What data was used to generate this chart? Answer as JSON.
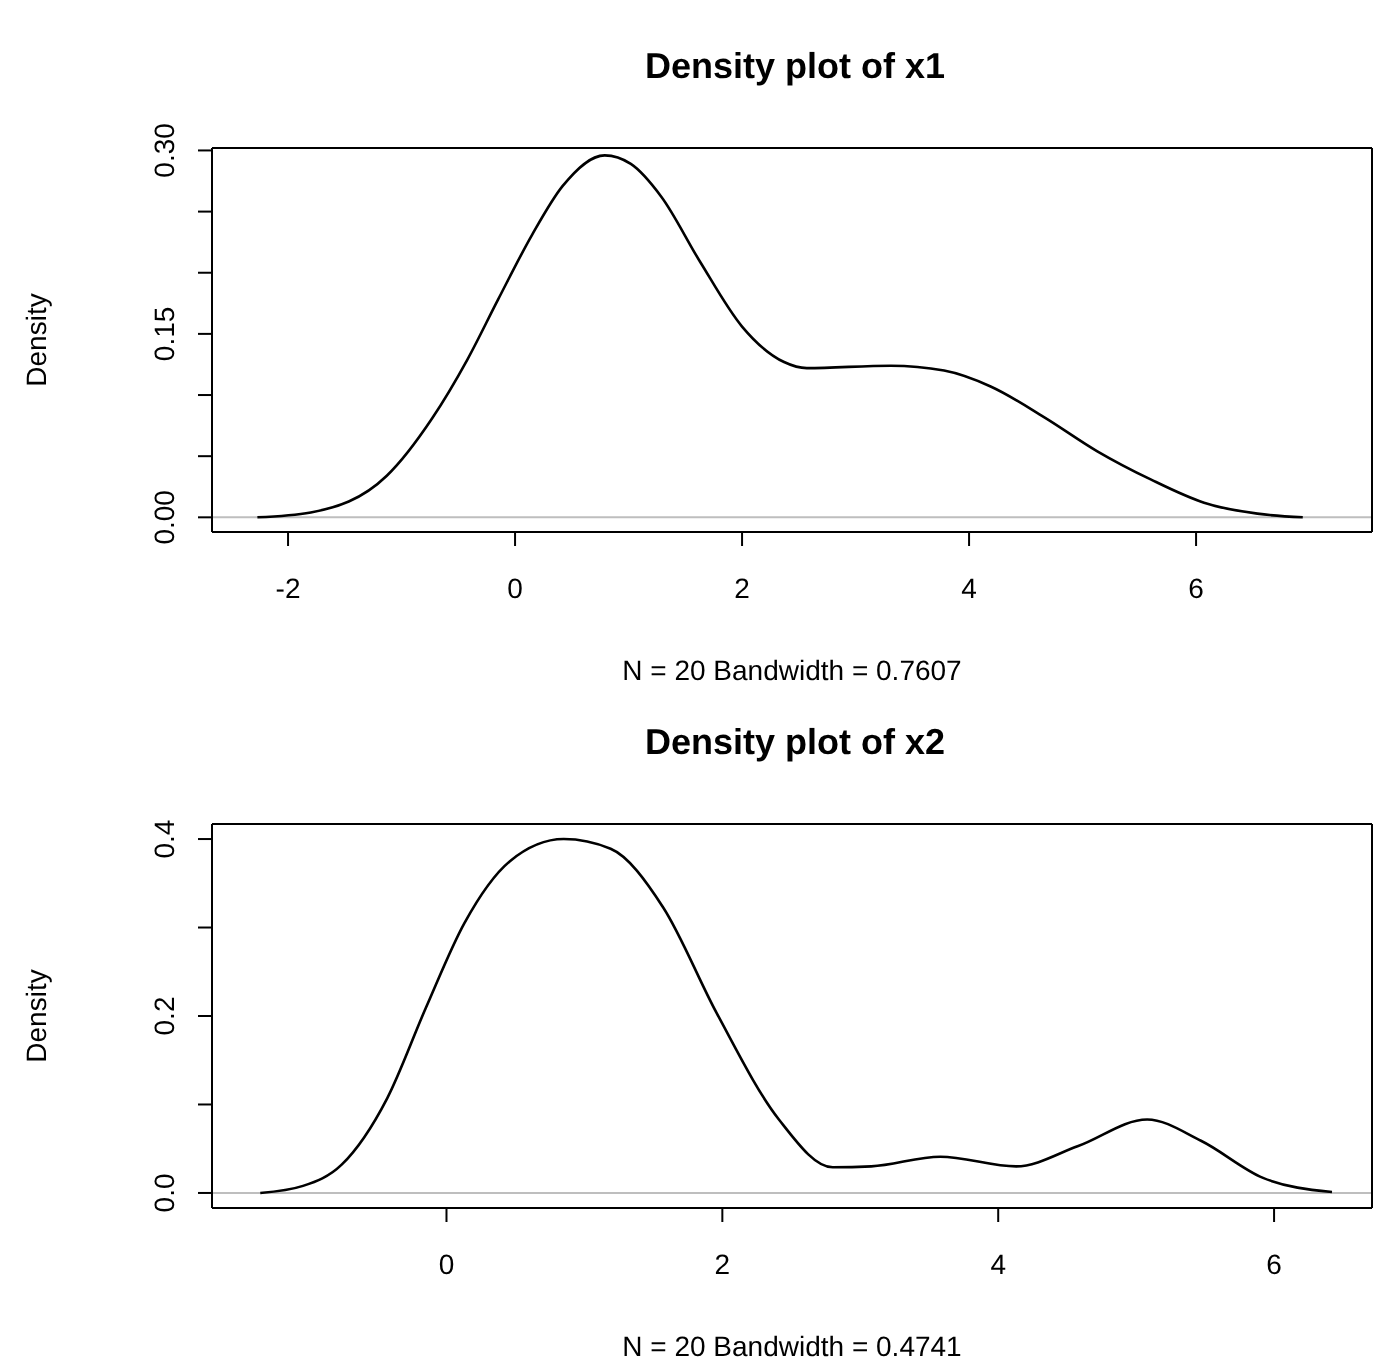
{
  "chart_data": [
    {
      "type": "line",
      "title": "Density plot of x1",
      "xlabel": "N = 20   Bandwidth = 0.7607",
      "ylabel": "Density",
      "grid": false,
      "marker": "none",
      "line_style": "solid",
      "series": [
        {
          "color": "#000000",
          "x": [
            -2.27,
            -1.8,
            -1.13,
            -0.73,
            -0.42,
            -0.15,
            0.15,
            0.42,
            0.79,
            1.02,
            1.29,
            1.63,
            2.0,
            2.37,
            2.57,
            3.31,
            3.78,
            4.19,
            4.66,
            5.13,
            5.6,
            6.07,
            6.54,
            6.94
          ],
          "values": [
            0.0,
            0.004,
            0.034,
            0.081,
            0.129,
            0.178,
            0.231,
            0.271,
            0.296,
            0.289,
            0.262,
            0.209,
            0.156,
            0.127,
            0.122,
            0.124,
            0.12,
            0.107,
            0.082,
            0.054,
            0.031,
            0.012,
            0.003,
            0.0
          ]
        }
      ],
      "xlim": [
        -2.67,
        7.55
      ],
      "xticks": [
        -2,
        0,
        2,
        4,
        6
      ],
      "ylim": [
        -0.012,
        0.302
      ],
      "yticks": [
        {
          "value": 0,
          "label": "0.00"
        },
        {
          "value": 0.05,
          "label": null
        },
        {
          "value": 0.1,
          "label": null
        },
        {
          "value": 0.15,
          "label": "0.15"
        },
        {
          "value": 0.2,
          "label": null
        },
        {
          "value": 0.25,
          "label": null
        },
        {
          "value": 0.3,
          "label": "0.30"
        }
      ],
      "ref_lines": [
        {
          "axis": "y",
          "value": 0,
          "color": "#bebebe"
        }
      ]
    },
    {
      "type": "line",
      "title": "Density plot of x2",
      "xlabel": "N = 20   Bandwidth = 0.4741",
      "ylabel": "Density",
      "grid": false,
      "marker": "none",
      "line_style": "solid",
      "series": [
        {
          "color": "#000000",
          "x": [
            -1.35,
            -1.04,
            -0.76,
            -0.43,
            -0.15,
            0.13,
            0.46,
            0.85,
            1.19,
            1.57,
            1.96,
            2.41,
            2.8,
            3.08,
            3.58,
            4.13,
            4.58,
            5.08,
            5.47,
            5.92,
            6.42
          ],
          "values": [
            0.0,
            0.008,
            0.032,
            0.107,
            0.209,
            0.305,
            0.375,
            0.4,
            0.389,
            0.323,
            0.203,
            0.083,
            0.029,
            0.03,
            0.041,
            0.03,
            0.053,
            0.083,
            0.059,
            0.017,
            0.001
          ]
        }
      ],
      "xlim": [
        -1.7,
        6.71
      ],
      "xticks": [
        0,
        2,
        4,
        6
      ],
      "ylim": [
        -0.017,
        0.417
      ],
      "yticks": [
        {
          "value": 0,
          "label": "0.0"
        },
        {
          "value": 0.1,
          "label": null
        },
        {
          "value": 0.2,
          "label": "0.2"
        },
        {
          "value": 0.3,
          "label": null
        },
        {
          "value": 0.4,
          "label": "0.4"
        }
      ],
      "ref_lines": [
        {
          "axis": "y",
          "value": 0,
          "color": "#bebebe"
        }
      ]
    }
  ]
}
